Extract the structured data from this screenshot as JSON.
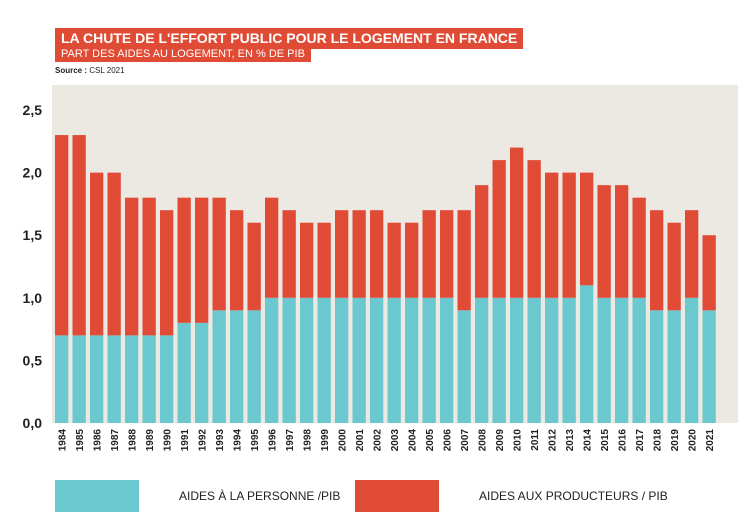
{
  "header": {
    "title": "LA CHUTE DE L'EFFORT PUBLIC POUR LE LOGEMENT EN FRANCE",
    "subtitle": "PART DES AIDES AU LOGEMENT, EN % DE PIB",
    "source_label": "Source :",
    "source_value": "CSL 2021"
  },
  "colors": {
    "title_band": "#e04b35",
    "plot_background": "#ece8e2",
    "personne": "#6cc8cf",
    "producteurs": "#e04b35"
  },
  "chart_data": {
    "type": "bar",
    "stacked": true,
    "categories": [
      "1984",
      "1985",
      "1986",
      "1987",
      "1988",
      "1989",
      "1990",
      "1991",
      "1992",
      "1993",
      "1994",
      "1995",
      "1996",
      "1997",
      "1998",
      "1999",
      "2000",
      "2001",
      "2002",
      "2003",
      "2004",
      "2005",
      "2006",
      "2007",
      "2008",
      "2009",
      "2010",
      "2011",
      "2012",
      "2013",
      "2014",
      "2015",
      "2016",
      "2017",
      "2018",
      "2019",
      "2020",
      "2021"
    ],
    "series": [
      {
        "name": "AIDES À LA PERSONNE /PIB",
        "values": [
          0.7,
          0.7,
          0.7,
          0.7,
          0.7,
          0.7,
          0.7,
          0.8,
          0.8,
          0.9,
          0.9,
          0.9,
          1.0,
          1.0,
          1.0,
          1.0,
          1.0,
          1.0,
          1.0,
          1.0,
          1.0,
          1.0,
          1.0,
          0.9,
          1.0,
          1.0,
          1.0,
          1.0,
          1.0,
          1.0,
          1.1,
          1.0,
          1.0,
          1.0,
          0.9,
          0.9,
          1.0,
          0.9
        ]
      },
      {
        "name": "AIDES AUX PRODUCTEURS / PIB",
        "values": [
          1.6,
          1.6,
          1.3,
          1.3,
          1.1,
          1.1,
          1.0,
          1.0,
          1.0,
          0.9,
          0.8,
          0.7,
          0.8,
          0.7,
          0.6,
          0.6,
          0.7,
          0.7,
          0.7,
          0.6,
          0.6,
          0.7,
          0.7,
          0.8,
          0.9,
          1.1,
          1.2,
          1.1,
          1.0,
          1.0,
          0.9,
          0.9,
          0.9,
          0.8,
          0.8,
          0.7,
          0.7,
          0.6
        ]
      }
    ],
    "yticks": [
      "0,0",
      "0,5",
      "1,0",
      "1,5",
      "2,0",
      "2,5"
    ],
    "ytick_values": [
      0,
      0.5,
      1.0,
      1.5,
      2.0,
      2.5
    ],
    "ylim": [
      0,
      2.7
    ],
    "legend_position": "bottom",
    "grid": false
  }
}
